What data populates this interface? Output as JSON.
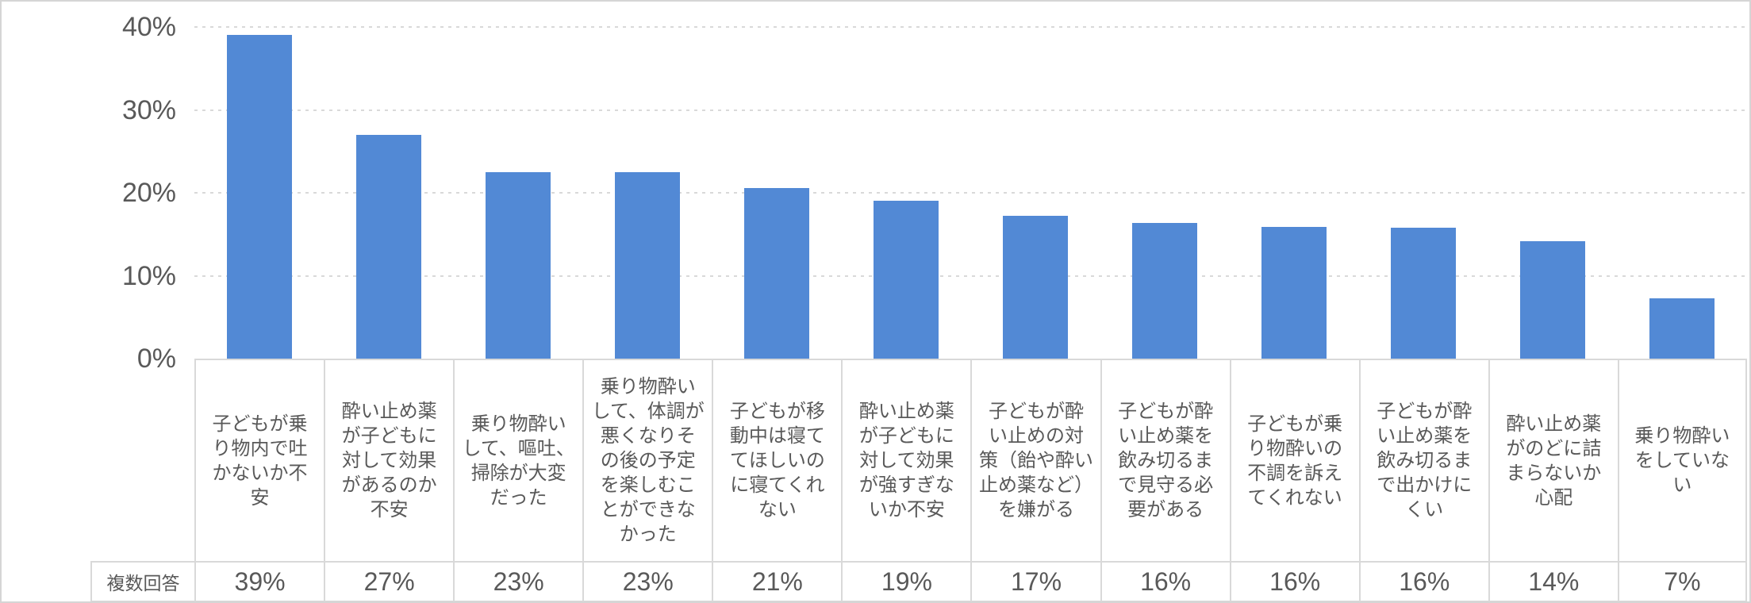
{
  "chart_data": {
    "type": "bar",
    "title": "",
    "xlabel": "",
    "ylabel": "",
    "ylim": [
      0,
      40
    ],
    "grid": "horizontal-dashed",
    "legend_position": "none",
    "y_tick_labels": [
      "0%",
      "10%",
      "20%",
      "30%",
      "40%"
    ],
    "y_tick_values": [
      0,
      10,
      20,
      30,
      40
    ],
    "categories": [
      "子どもが乗り物内で吐かないか不安",
      "酔い止め薬が子どもに対して効果があるのか不安",
      "乗り物酔いして、嘔吐、掃除が大変だった",
      "乗り物酔いして、体調が悪くなりその後の予定を楽しむことができなかった",
      "子どもが移動中は寝ててほしいのに寝てくれない",
      "酔い止め薬が子どもに対して効果が強すぎないか不安",
      "子どもが酔い止めの対策（飴や酔い止め薬など）を嫌がる",
      "子どもが酔い止め薬を飲み切るまで見守る必要がある",
      "子どもが乗り物酔いの不調を訴えてくれない",
      "子どもが酔い止め薬を飲み切るまで出かけにくい",
      "酔い止め薬がのどに詰まらないか心配",
      "乗り物酔いをしていない"
    ],
    "category_display_lines": [
      [
        "子どもが乗",
        "り物内で吐",
        "かないか不",
        "安"
      ],
      [
        "酔い止め薬",
        "が子どもに",
        "対して効果",
        "があるのか",
        "不安"
      ],
      [
        "乗り物酔い",
        "して、嘔吐、",
        "掃除が大変",
        "だった"
      ],
      [
        "乗り物酔い",
        "して、体調が",
        "悪くなりそ",
        "の後の予定",
        "を楽しむこ",
        "とができな",
        "かった"
      ],
      [
        "子どもが移",
        "動中は寝て",
        "てほしいの",
        "に寝てくれ",
        "ない"
      ],
      [
        "酔い止め薬",
        "が子どもに",
        "対して効果",
        "が強すぎな",
        "いか不安"
      ],
      [
        "子どもが酔",
        "い止めの対",
        "策（飴や酔い",
        "止め薬など）",
        "を嫌がる"
      ],
      [
        "子どもが酔",
        "い止め薬を",
        "飲み切るま",
        "で見守る必",
        "要がある"
      ],
      [
        "子どもが乗",
        "り物酔いの",
        "不調を訴え",
        "てくれない"
      ],
      [
        "子どもが酔",
        "い止め薬を",
        "飲み切るま",
        "で出かけに",
        "くい"
      ],
      [
        "酔い止め薬",
        "がのどに詰",
        "まらないか",
        "心配"
      ],
      [
        "乗り物酔い",
        "をしていな",
        "い"
      ]
    ],
    "series": [
      {
        "name": "複数回答",
        "values": [
          39,
          27,
          22.5,
          22.5,
          20.6,
          19,
          17.2,
          16.4,
          15.9,
          15.8,
          14.2,
          7.3
        ]
      }
    ],
    "data_table": {
      "row_label": "複数回答",
      "row_values": [
        "39%",
        "27%",
        "23%",
        "23%",
        "21%",
        "19%",
        "17%",
        "16%",
        "16%",
        "16%",
        "14%",
        "7%"
      ]
    },
    "colors": {
      "bar": "#5289D5",
      "gridline": "#D9D9D9",
      "table_border": "#D9D9D9",
      "text": "#595959",
      "chart_border": "#D5D5D5"
    }
  }
}
